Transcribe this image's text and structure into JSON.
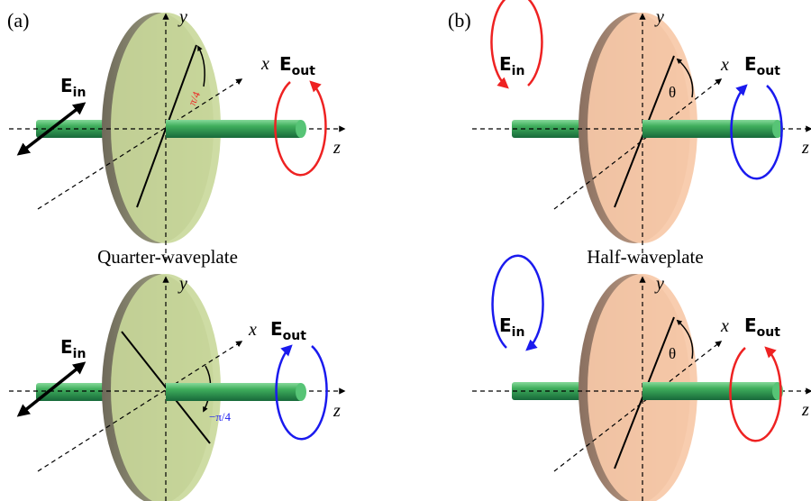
{
  "panels": {
    "a": {
      "label": "(a)",
      "caption": "Quarter-waveplate",
      "top": {
        "axes": {
          "x": "x",
          "y": "y",
          "z": "z"
        },
        "e_in": {
          "main": "E",
          "sub": "in"
        },
        "e_out": {
          "main": "E",
          "sub": "out"
        },
        "angle_label": "π/4",
        "output_color": "#ee2222"
      },
      "bottom": {
        "axes": {
          "x": "x",
          "y": "y",
          "z": "z"
        },
        "e_in": {
          "main": "E",
          "sub": "in"
        },
        "e_out": {
          "main": "E",
          "sub": "out"
        },
        "angle_label": "−π/4",
        "output_color": "#1a1aee"
      },
      "plate_color": "#c9d89a"
    },
    "b": {
      "label": "(b)",
      "caption": "Half-waveplate",
      "top": {
        "axes": {
          "x": "x",
          "y": "y",
          "z": "z"
        },
        "e_in": {
          "main": "E",
          "sub": "in"
        },
        "e_out": {
          "main": "E",
          "sub": "out"
        },
        "angle_label": "θ",
        "input_color": "#ee2222",
        "output_color": "#1a1aee"
      },
      "bottom": {
        "axes": {
          "x": "x",
          "y": "y",
          "z": "z"
        },
        "e_in": {
          "main": "E",
          "sub": "in"
        },
        "e_out": {
          "main": "E",
          "sub": "out"
        },
        "angle_label": "θ",
        "input_color": "#1a1aee",
        "output_color": "#ee2222"
      },
      "plate_color": "#f7c9a8"
    }
  },
  "colors": {
    "beam": "#2e9a4e",
    "axis": "#000000"
  }
}
